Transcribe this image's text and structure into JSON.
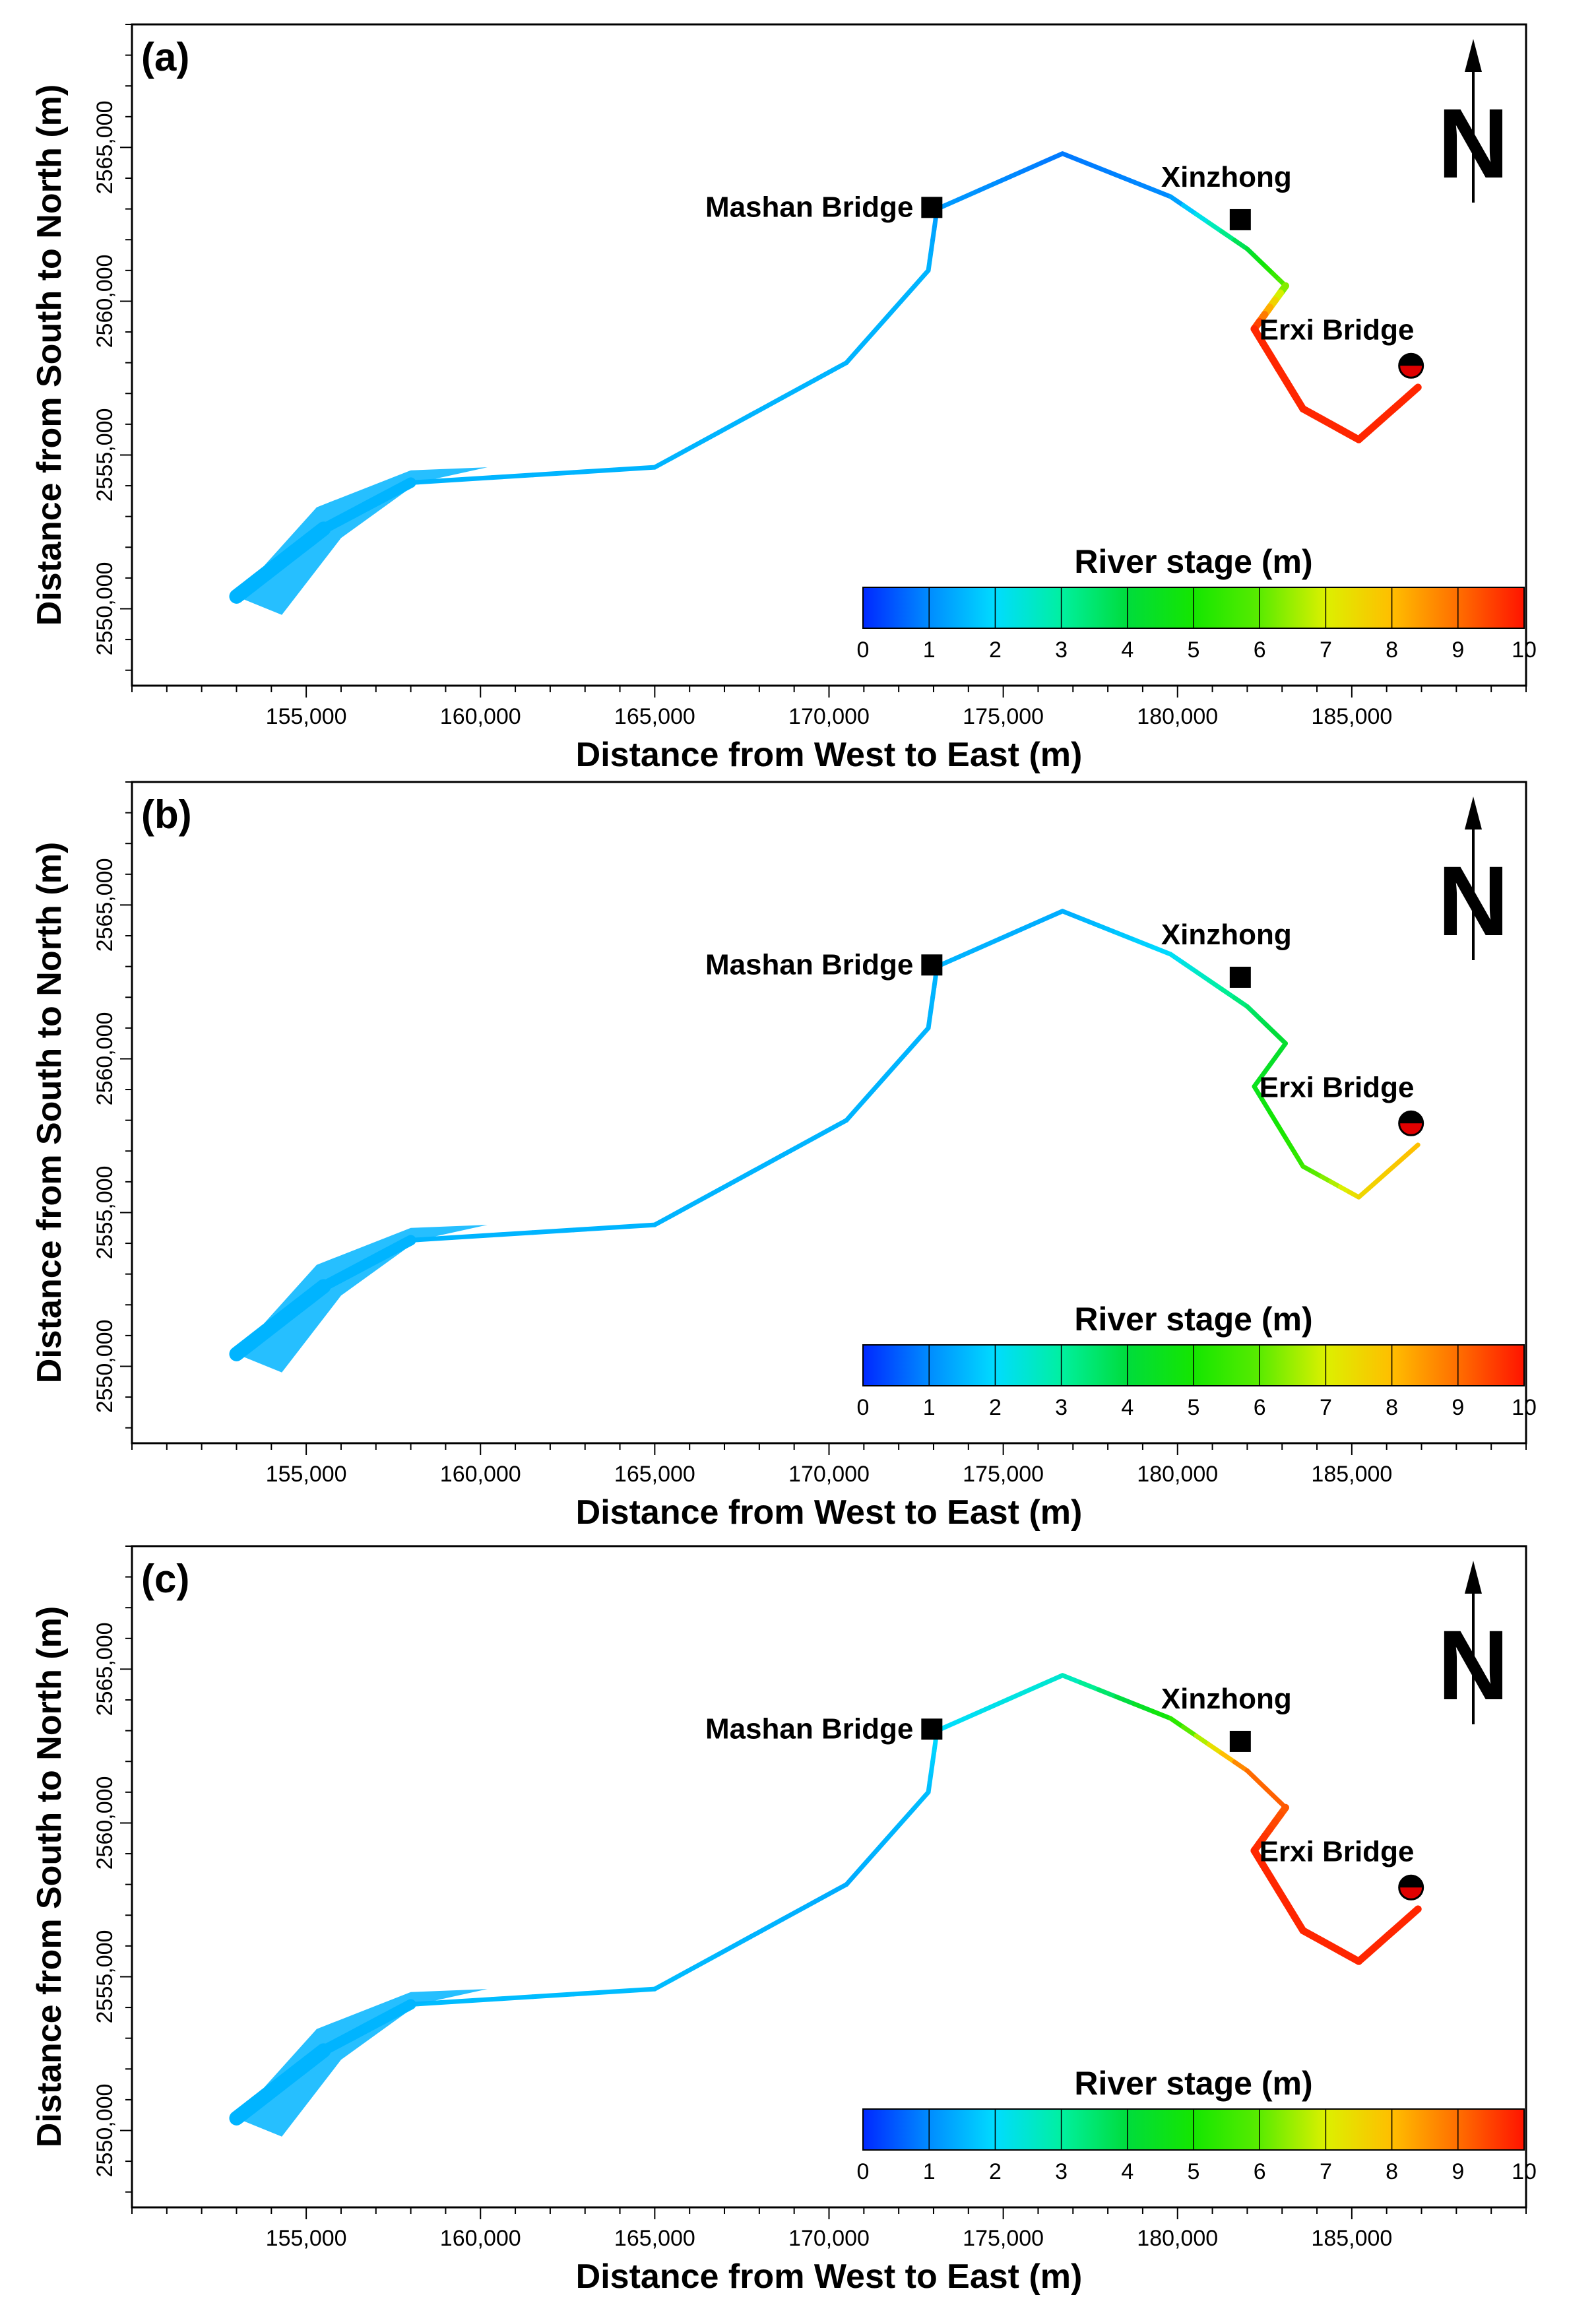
{
  "chart_data": [
    {
      "type": "map",
      "panel_label": "(a)",
      "xlabel": "Distance from West to East (m)",
      "ylabel": "Distance from  South to North (m)",
      "xlim": [
        150000,
        190000
      ],
      "ylim": [
        2547500,
        2569000
      ],
      "x_ticks": [
        155000,
        160000,
        165000,
        170000,
        175000,
        180000,
        185000
      ],
      "x_tick_labels": [
        "155,000",
        "160,000",
        "165,000",
        "170,000",
        "175,000",
        "180,000",
        "185,000"
      ],
      "y_ticks": [
        2550000,
        2555000,
        2560000,
        2565000
      ],
      "y_tick_labels": [
        "2550,000",
        "2555,000",
        "2560,000",
        "2565,000"
      ],
      "sites": [
        {
          "name": "Mashan Bridge",
          "x": 172950,
          "y": 2563050,
          "marker": "square"
        },
        {
          "name": "Xinzhong",
          "x": 181800,
          "y": 2562650,
          "marker": "square"
        },
        {
          "name": "Erxi Bridge",
          "x": 186700,
          "y": 2557900,
          "marker": "half-circle"
        }
      ],
      "north_arrow": "N",
      "colorbar": {
        "title": "River stage (m)",
        "min": 0,
        "max": 10,
        "ticks": [
          0,
          1,
          2,
          3,
          4,
          5,
          6,
          7,
          8,
          9,
          10
        ]
      },
      "river_stage_profile": [
        {
          "x": 153000,
          "y": 2550400,
          "stage": 1.5
        },
        {
          "x": 155500,
          "y": 2552600,
          "stage": 1.5
        },
        {
          "x": 158000,
          "y": 2554100,
          "stage": 1.5
        },
        {
          "x": 165000,
          "y": 2554600,
          "stage": 1.5
        },
        {
          "x": 170500,
          "y": 2558000,
          "stage": 1.5
        },
        {
          "x": 172850,
          "y": 2561000,
          "stage": 1.5
        },
        {
          "x": 173100,
          "y": 2563000,
          "stage": 1.2
        },
        {
          "x": 176700,
          "y": 2564800,
          "stage": 0.8
        },
        {
          "x": 179800,
          "y": 2563400,
          "stage": 1.0
        },
        {
          "x": 182000,
          "y": 2561700,
          "stage": 4.0
        },
        {
          "x": 183100,
          "y": 2560500,
          "stage": 6.0
        },
        {
          "x": 182200,
          "y": 2559100,
          "stage": 9.8
        },
        {
          "x": 183600,
          "y": 2556500,
          "stage": 9.8
        },
        {
          "x": 185200,
          "y": 2555500,
          "stage": 9.8
        },
        {
          "x": 186900,
          "y": 2557200,
          "stage": 9.8
        }
      ]
    },
    {
      "type": "map",
      "panel_label": "(b)",
      "xlabel": "Distance from West to East (m)",
      "ylabel": "Distance from  South to North (m)",
      "xlim": [
        150000,
        190000
      ],
      "ylim": [
        2547500,
        2569000
      ],
      "x_ticks": [
        155000,
        160000,
        165000,
        170000,
        175000,
        180000,
        185000
      ],
      "x_tick_labels": [
        "155,000",
        "160,000",
        "165,000",
        "170,000",
        "175,000",
        "180,000",
        "185,000"
      ],
      "y_ticks": [
        2550000,
        2555000,
        2560000,
        2565000
      ],
      "y_tick_labels": [
        "2550,000",
        "2555,000",
        "2560,000",
        "2565,000"
      ],
      "sites": [
        {
          "name": "Mashan Bridge",
          "x": 172950,
          "y": 2563050,
          "marker": "square"
        },
        {
          "name": "Xinzhong",
          "x": 181800,
          "y": 2562650,
          "marker": "square"
        },
        {
          "name": "Erxi Bridge",
          "x": 186700,
          "y": 2557900,
          "marker": "half-circle"
        }
      ],
      "north_arrow": "N",
      "colorbar": {
        "title": "River stage (m)",
        "min": 0,
        "max": 10,
        "ticks": [
          0,
          1,
          2,
          3,
          4,
          5,
          6,
          7,
          8,
          9,
          10
        ]
      },
      "river_stage_profile": [
        {
          "x": 153000,
          "y": 2550400,
          "stage": 1.5
        },
        {
          "x": 155500,
          "y": 2552600,
          "stage": 1.5
        },
        {
          "x": 158000,
          "y": 2554100,
          "stage": 1.5
        },
        {
          "x": 165000,
          "y": 2554600,
          "stage": 1.5
        },
        {
          "x": 170500,
          "y": 2558000,
          "stage": 1.5
        },
        {
          "x": 172850,
          "y": 2561000,
          "stage": 1.5
        },
        {
          "x": 173100,
          "y": 2563000,
          "stage": 1.5
        },
        {
          "x": 176700,
          "y": 2564800,
          "stage": 1.4
        },
        {
          "x": 179800,
          "y": 2563400,
          "stage": 2.0
        },
        {
          "x": 182000,
          "y": 2561700,
          "stage": 3.5
        },
        {
          "x": 183100,
          "y": 2560500,
          "stage": 4.2
        },
        {
          "x": 182200,
          "y": 2559100,
          "stage": 4.5
        },
        {
          "x": 183600,
          "y": 2556500,
          "stage": 5.5
        },
        {
          "x": 185200,
          "y": 2555500,
          "stage": 7.5
        },
        {
          "x": 186900,
          "y": 2557200,
          "stage": 8.0
        }
      ]
    },
    {
      "type": "map",
      "panel_label": "(c)",
      "xlabel": "Distance from West to East (m)",
      "ylabel": "Distance from  South to North (m)",
      "xlim": [
        150000,
        190000
      ],
      "ylim": [
        2547500,
        2569000
      ],
      "x_ticks": [
        155000,
        160000,
        165000,
        170000,
        175000,
        180000,
        185000
      ],
      "x_tick_labels": [
        "155,000",
        "160,000",
        "165,000",
        "170,000",
        "175,000",
        "180,000",
        "185,000"
      ],
      "y_ticks": [
        2550000,
        2555000,
        2560000,
        2565000
      ],
      "y_tick_labels": [
        "2550,000",
        "2555,000",
        "2560,000",
        "2565,000"
      ],
      "sites": [
        {
          "name": "Mashan Bridge",
          "x": 172950,
          "y": 2563050,
          "marker": "square"
        },
        {
          "name": "Xinzhong",
          "x": 181800,
          "y": 2562650,
          "marker": "square"
        },
        {
          "name": "Erxi Bridge",
          "x": 186700,
          "y": 2557900,
          "marker": "half-circle"
        }
      ],
      "north_arrow": "N",
      "colorbar": {
        "title": "River stage (m)",
        "min": 0,
        "max": 10,
        "ticks": [
          0,
          1,
          2,
          3,
          4,
          5,
          6,
          7,
          8,
          9,
          10
        ]
      },
      "river_stage_profile": [
        {
          "x": 153000,
          "y": 2550400,
          "stage": 1.5
        },
        {
          "x": 155500,
          "y": 2552600,
          "stage": 1.5
        },
        {
          "x": 158000,
          "y": 2554100,
          "stage": 1.6
        },
        {
          "x": 165000,
          "y": 2554600,
          "stage": 1.6
        },
        {
          "x": 170500,
          "y": 2558000,
          "stage": 1.4
        },
        {
          "x": 172850,
          "y": 2561000,
          "stage": 1.6
        },
        {
          "x": 173100,
          "y": 2563000,
          "stage": 2.0
        },
        {
          "x": 176700,
          "y": 2564800,
          "stage": 2.5
        },
        {
          "x": 179800,
          "y": 2563400,
          "stage": 5.0
        },
        {
          "x": 182000,
          "y": 2561700,
          "stage": 9.0
        },
        {
          "x": 183100,
          "y": 2560500,
          "stage": 9.2
        },
        {
          "x": 182200,
          "y": 2559100,
          "stage": 9.8
        },
        {
          "x": 183600,
          "y": 2556500,
          "stage": 9.8
        },
        {
          "x": 185200,
          "y": 2555500,
          "stage": 9.8
        },
        {
          "x": 186900,
          "y": 2557200,
          "stage": 9.8
        }
      ]
    }
  ]
}
